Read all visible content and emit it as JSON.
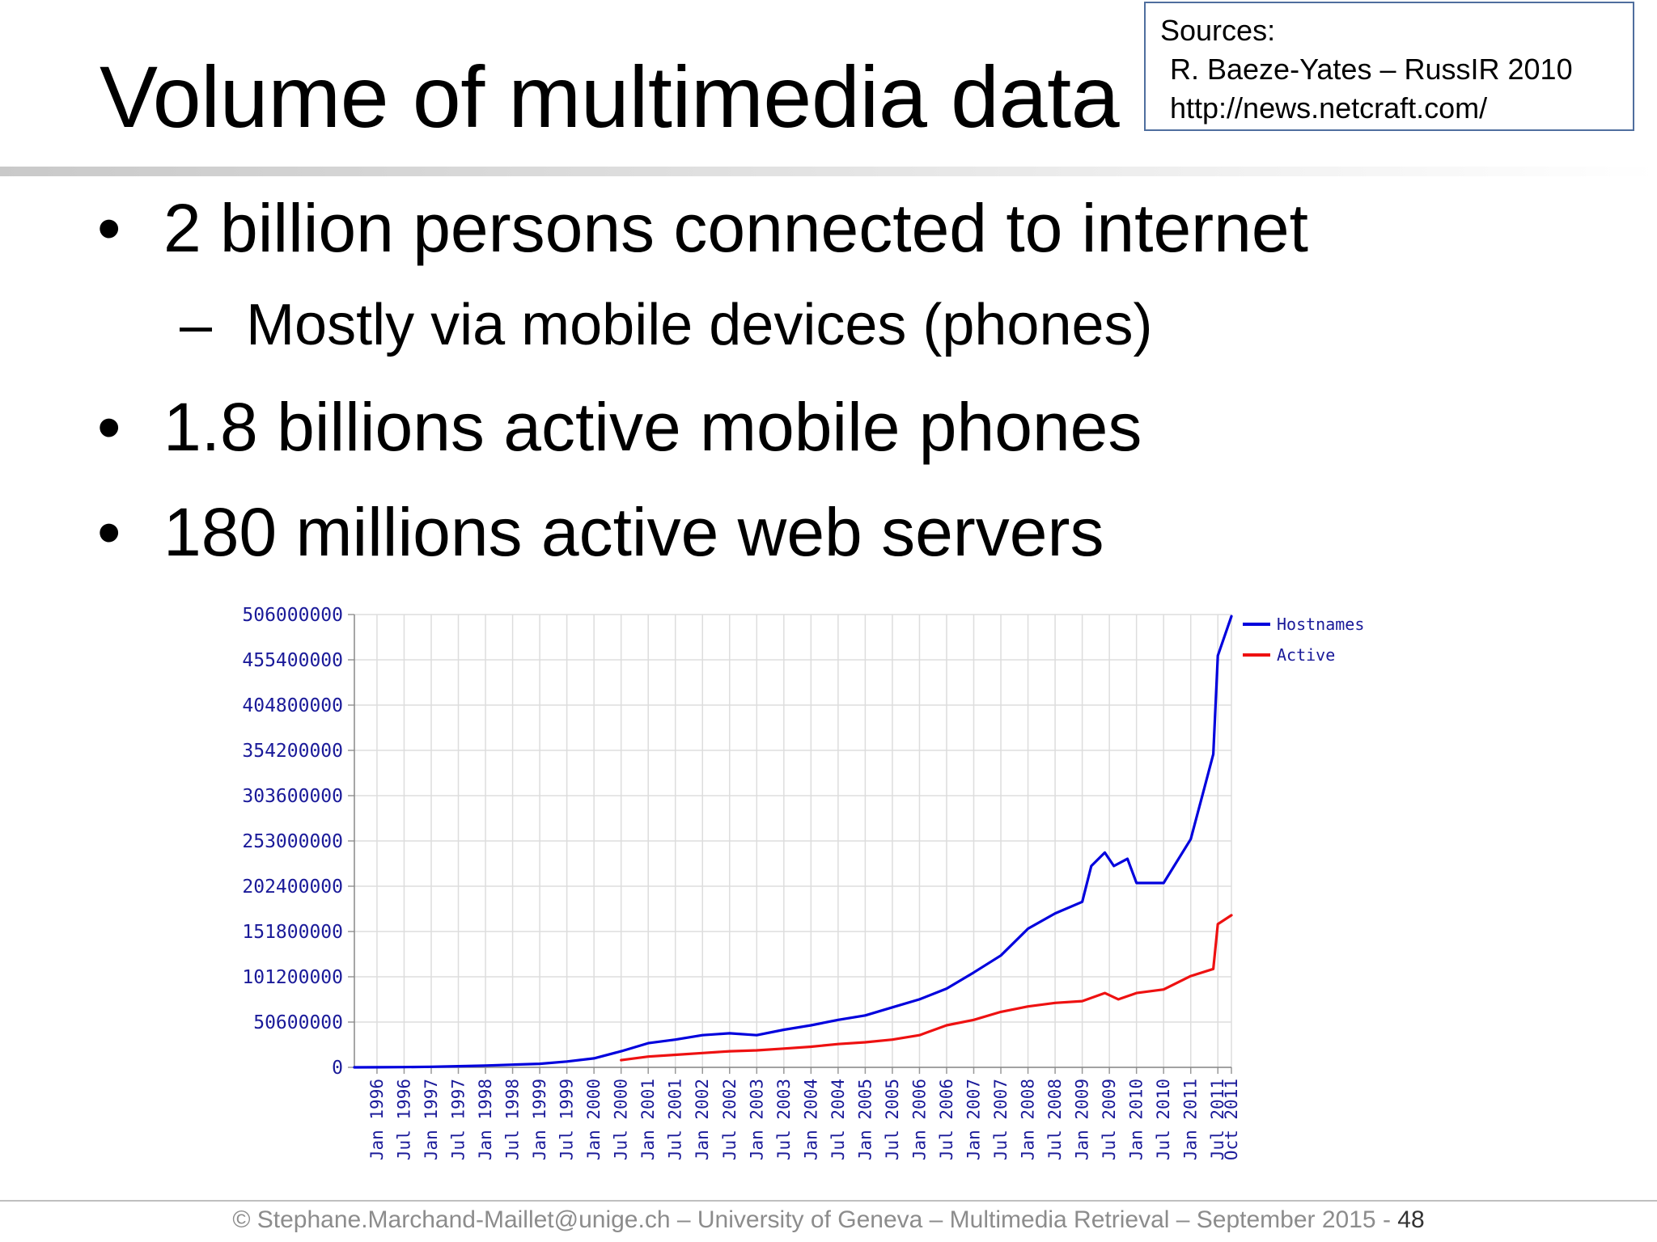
{
  "slide": {
    "title": "Volume of multimedia data",
    "sources": {
      "heading": "Sources:",
      "items": [
        "R. Baeze-Yates – RussIR 2010",
        "http://news.netcraft.com/"
      ]
    },
    "bullets": [
      {
        "marker": "•",
        "text": "2 billion persons connected to internet"
      },
      {
        "marker": "–",
        "text": "Mostly via mobile devices (phones)"
      },
      {
        "marker": "•",
        "text": "1.8 billions active mobile phones"
      },
      {
        "marker": "•",
        "text": "180 millions active web servers"
      }
    ],
    "footer": {
      "text": "© Stephane.Marchand-Maillet@unige.ch – University of  Geneva – Multimedia Retrieval – September 2015 - ",
      "page": "48"
    }
  },
  "chart_data": {
    "type": "line",
    "title": "",
    "xlabel": "",
    "ylabel": "",
    "ylim": [
      0,
      506000000
    ],
    "yticks": [
      0,
      50600000,
      101200000,
      151800000,
      202400000,
      253000000,
      303600000,
      354200000,
      404800000,
      455400000,
      506000000
    ],
    "ytick_labels": [
      "0",
      "50600000",
      "101200000",
      "151800000",
      "202400000",
      "253000000",
      "303600000",
      "354200000",
      "404800000",
      "455400000",
      "506000000"
    ],
    "xlim": [
      "1995-08",
      "2011-10"
    ],
    "xticks": [
      "1996-01",
      "1996-07",
      "1997-01",
      "1997-07",
      "1998-01",
      "1998-07",
      "1999-01",
      "1999-07",
      "2000-01",
      "2000-07",
      "2001-01",
      "2001-07",
      "2002-01",
      "2002-07",
      "2003-01",
      "2003-07",
      "2004-01",
      "2004-07",
      "2005-01",
      "2005-07",
      "2006-01",
      "2006-07",
      "2007-01",
      "2007-07",
      "2008-01",
      "2008-07",
      "2009-01",
      "2009-07",
      "2010-01",
      "2010-07",
      "2011-01",
      "2011-07",
      "2011-10"
    ],
    "xtick_labels": [
      "Jan 1996",
      "Jul 1996",
      "Jan 1997",
      "Jul 1997",
      "Jan 1998",
      "Jul 1998",
      "Jan 1999",
      "Jul 1999",
      "Jan 2000",
      "Jul 2000",
      "Jan 2001",
      "Jul 2001",
      "Jan 2002",
      "Jul 2002",
      "Jan 2003",
      "Jul 2003",
      "Jan 2004",
      "Jul 2004",
      "Jan 2005",
      "Jul 2005",
      "Jan 2006",
      "Jul 2006",
      "Jan 2007",
      "Jul 2007",
      "Jan 2008",
      "Jul 2008",
      "Jan 2009",
      "Jul 2009",
      "Jan 2010",
      "Jul 2010",
      "Jan 2011",
      "Jul 2011",
      "Oct 2011"
    ],
    "grid": true,
    "legend_position": "top-right",
    "series": [
      {
        "name": "Hostnames",
        "color": "#0000dd",
        "points": [
          [
            "1995-08",
            18957
          ],
          [
            "1996-01",
            74709
          ],
          [
            "1996-07",
            299403
          ],
          [
            "1997-01",
            650000
          ],
          [
            "1997-07",
            1300000
          ],
          [
            "1998-01",
            2000000
          ],
          [
            "1998-07",
            3000000
          ],
          [
            "1999-01",
            4000000
          ],
          [
            "1999-07",
            6500000
          ],
          [
            "2000-01",
            10000000
          ],
          [
            "2000-07",
            18000000
          ],
          [
            "2001-01",
            27000000
          ],
          [
            "2001-07",
            31000000
          ],
          [
            "2002-01",
            36000000
          ],
          [
            "2002-07",
            38000000
          ],
          [
            "2003-01",
            36000000
          ],
          [
            "2003-07",
            42000000
          ],
          [
            "2004-01",
            47000000
          ],
          [
            "2004-07",
            53000000
          ],
          [
            "2005-01",
            58000000
          ],
          [
            "2005-07",
            67000000
          ],
          [
            "2006-01",
            76000000
          ],
          [
            "2006-07",
            88000000
          ],
          [
            "2007-01",
            106000000
          ],
          [
            "2007-07",
            125000000
          ],
          [
            "2008-01",
            155000000
          ],
          [
            "2008-07",
            172000000
          ],
          [
            "2009-01",
            185000000
          ],
          [
            "2009-03",
            225000000
          ],
          [
            "2009-06",
            240000000
          ],
          [
            "2009-08",
            225000000
          ],
          [
            "2009-11",
            233000000
          ],
          [
            "2010-01",
            206000000
          ],
          [
            "2010-07",
            206000000
          ],
          [
            "2011-01",
            255000000
          ],
          [
            "2011-04",
            312000000
          ],
          [
            "2011-06",
            350000000
          ],
          [
            "2011-07",
            460000000
          ],
          [
            "2011-10",
            504000000
          ]
        ]
      },
      {
        "name": "Active",
        "color": "#ee1111",
        "points": [
          [
            "2000-07",
            8000000
          ],
          [
            "2001-01",
            12000000
          ],
          [
            "2001-07",
            14000000
          ],
          [
            "2002-01",
            16000000
          ],
          [
            "2002-07",
            18000000
          ],
          [
            "2003-01",
            19000000
          ],
          [
            "2003-07",
            21000000
          ],
          [
            "2004-01",
            23000000
          ],
          [
            "2004-07",
            26000000
          ],
          [
            "2005-01",
            28000000
          ],
          [
            "2005-07",
            31000000
          ],
          [
            "2006-01",
            36000000
          ],
          [
            "2006-07",
            47000000
          ],
          [
            "2007-01",
            53000000
          ],
          [
            "2007-07",
            62000000
          ],
          [
            "2008-01",
            68000000
          ],
          [
            "2008-07",
            72000000
          ],
          [
            "2009-01",
            74000000
          ],
          [
            "2009-06",
            83000000
          ],
          [
            "2009-09",
            76000000
          ],
          [
            "2010-01",
            83000000
          ],
          [
            "2010-07",
            87000000
          ],
          [
            "2011-01",
            102000000
          ],
          [
            "2011-06",
            110000000
          ],
          [
            "2011-07",
            160000000
          ],
          [
            "2011-10",
            170000000
          ]
        ]
      }
    ]
  }
}
